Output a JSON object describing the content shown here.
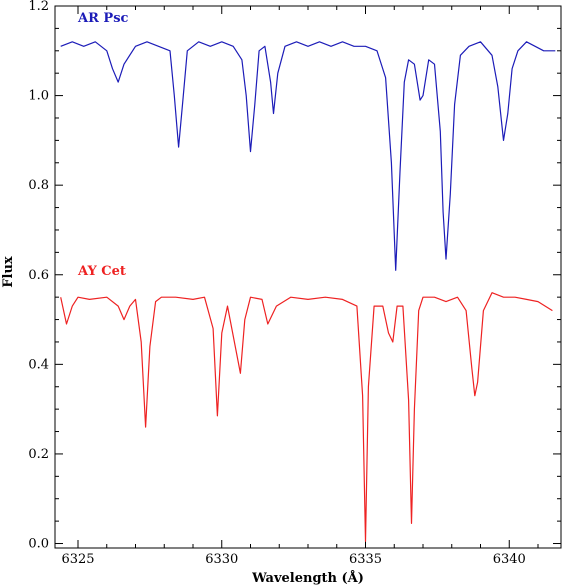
{
  "chart_data": {
    "type": "line",
    "xlabel": "Wavelength (Å)",
    "ylabel": "Flux",
    "xlim": [
      6324.2,
      6341.8
    ],
    "ylim": [
      -0.01,
      1.2
    ],
    "x_ticks": [
      6325,
      6330,
      6335,
      6340
    ],
    "x_tick_labels": [
      "6325",
      "6330",
      "6335",
      "6340"
    ],
    "y_ticks": [
      0.0,
      0.2,
      0.4,
      0.6,
      0.8,
      1.0,
      1.2
    ],
    "y_tick_labels": [
      "0.0",
      "0.2",
      "0.4",
      "0.6",
      "0.8",
      "1.0",
      "1.2"
    ],
    "grid": false,
    "series": [
      {
        "name": "AR Psc",
        "color": "#1c1cb8",
        "x": [
          6324.4,
          6324.8,
          6325.2,
          6325.6,
          6326.0,
          6326.2,
          6326.4,
          6326.6,
          6327.0,
          6327.4,
          6327.8,
          6328.2,
          6328.35,
          6328.5,
          6328.65,
          6328.8,
          6329.2,
          6329.6,
          6330.0,
          6330.4,
          6330.7,
          6330.85,
          6331.0,
          6331.15,
          6331.3,
          6331.5,
          6331.7,
          6331.8,
          6331.95,
          6332.2,
          6332.6,
          6333.0,
          6333.4,
          6333.8,
          6334.2,
          6334.6,
          6335.0,
          6335.4,
          6335.7,
          6335.9,
          6336.05,
          6336.2,
          6336.35,
          6336.5,
          6336.7,
          6336.9,
          6337.0,
          6337.2,
          6337.4,
          6337.6,
          6337.7,
          6337.8,
          6337.95,
          6338.1,
          6338.3,
          6338.6,
          6339.0,
          6339.4,
          6339.6,
          6339.8,
          6339.95,
          6340.1,
          6340.3,
          6340.6,
          6340.9,
          6341.2,
          6341.6
        ],
        "y": [
          1.11,
          1.12,
          1.11,
          1.12,
          1.1,
          1.06,
          1.03,
          1.07,
          1.11,
          1.12,
          1.11,
          1.1,
          1.0,
          0.885,
          0.99,
          1.1,
          1.12,
          1.11,
          1.12,
          1.11,
          1.08,
          1.0,
          0.875,
          0.98,
          1.1,
          1.11,
          1.03,
          0.96,
          1.05,
          1.11,
          1.12,
          1.11,
          1.12,
          1.11,
          1.12,
          1.11,
          1.11,
          1.1,
          1.04,
          0.85,
          0.61,
          0.83,
          1.03,
          1.08,
          1.07,
          0.99,
          1.0,
          1.08,
          1.07,
          0.92,
          0.74,
          0.635,
          0.78,
          0.98,
          1.09,
          1.11,
          1.12,
          1.09,
          1.02,
          0.9,
          0.96,
          1.06,
          1.1,
          1.12,
          1.11,
          1.1,
          1.1
        ]
      },
      {
        "name": "AY Cet",
        "color": "#ee2222",
        "x": [
          6324.4,
          6324.6,
          6324.8,
          6325.0,
          6325.4,
          6326.0,
          6326.4,
          6326.6,
          6326.8,
          6327.0,
          6327.2,
          6327.35,
          6327.5,
          6327.7,
          6327.9,
          6328.4,
          6329.0,
          6329.4,
          6329.7,
          6329.85,
          6330.0,
          6330.2,
          6330.5,
          6330.65,
          6330.8,
          6331.0,
          6331.4,
          6331.6,
          6331.9,
          6332.4,
          6333.0,
          6333.6,
          6334.2,
          6334.7,
          6334.9,
          6335.0,
          6335.1,
          6335.3,
          6335.6,
          6335.8,
          6335.95,
          6336.1,
          6336.3,
          6336.5,
          6336.6,
          6336.7,
          6336.85,
          6337.0,
          6337.4,
          6337.8,
          6338.2,
          6338.5,
          6338.7,
          6338.8,
          6338.9,
          6339.1,
          6339.4,
          6339.8,
          6340.2,
          6340.6,
          6341.0,
          6341.5
        ],
        "y": [
          0.55,
          0.49,
          0.53,
          0.55,
          0.545,
          0.55,
          0.53,
          0.5,
          0.53,
          0.545,
          0.45,
          0.26,
          0.44,
          0.54,
          0.55,
          0.55,
          0.545,
          0.55,
          0.48,
          0.285,
          0.47,
          0.53,
          0.43,
          0.38,
          0.5,
          0.55,
          0.545,
          0.49,
          0.53,
          0.55,
          0.545,
          0.55,
          0.545,
          0.53,
          0.33,
          0.005,
          0.35,
          0.53,
          0.53,
          0.47,
          0.45,
          0.53,
          0.53,
          0.32,
          0.045,
          0.3,
          0.52,
          0.55,
          0.55,
          0.54,
          0.55,
          0.52,
          0.39,
          0.33,
          0.36,
          0.52,
          0.56,
          0.55,
          0.55,
          0.545,
          0.54,
          0.52
        ]
      }
    ]
  }
}
